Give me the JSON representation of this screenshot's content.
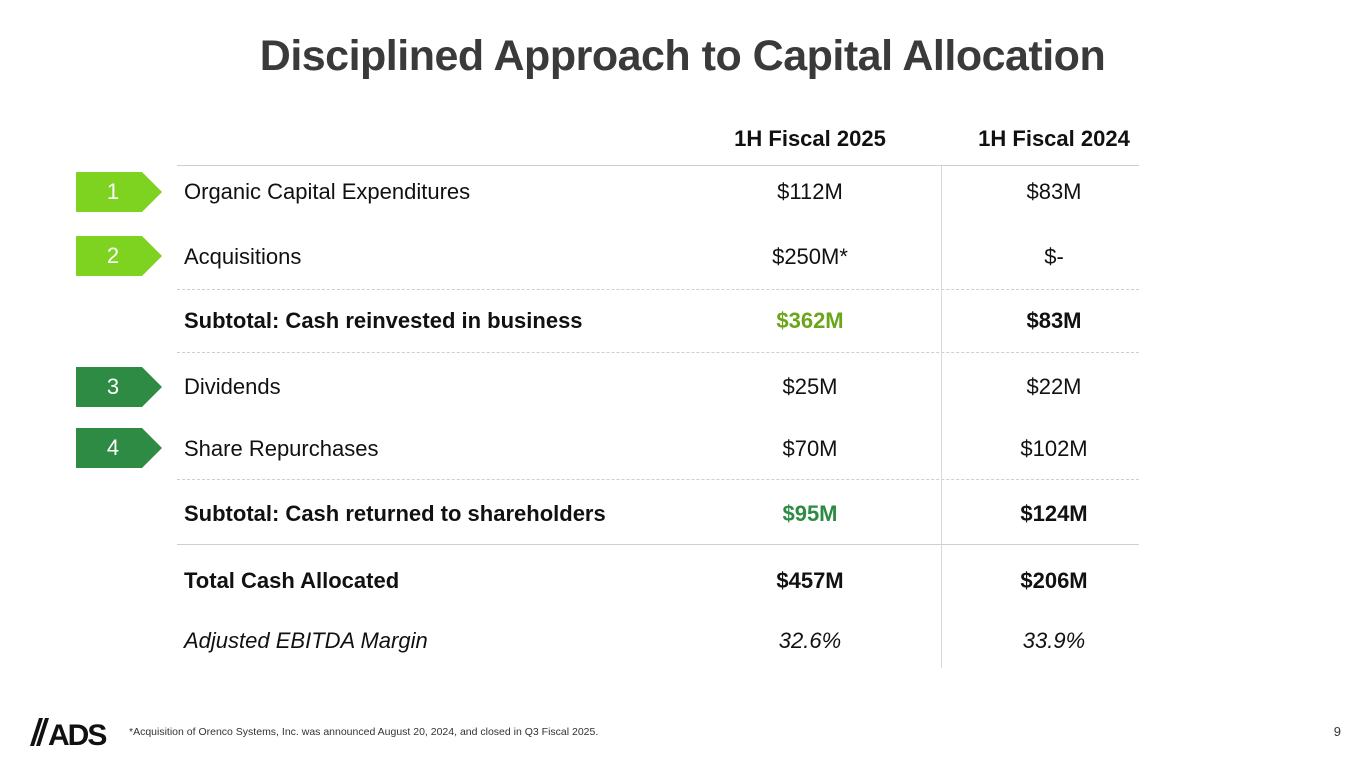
{
  "title": "Disciplined Approach to Capital Allocation",
  "columns": [
    "1H Fiscal 2025",
    "1H Fiscal 2024"
  ],
  "colors": {
    "badge_light_green": "#7ed321",
    "badge_dark_green": "#2e8b43",
    "value_light_green": "#6aa51a",
    "value_dark_green": "#2e8b43"
  },
  "badges": [
    {
      "number": "1",
      "color": "#7ed321"
    },
    {
      "number": "2",
      "color": "#7ed321"
    },
    {
      "number": "3",
      "color": "#2e8b43"
    },
    {
      "number": "4",
      "color": "#2e8b43"
    }
  ],
  "rows": [
    {
      "label": "Organic Capital Expenditures",
      "fy2025": "$112M",
      "fy2024": "$83M"
    },
    {
      "label": "Acquisitions",
      "fy2025": "$250M*",
      "fy2024": "$-"
    },
    {
      "label": "Subtotal: Cash reinvested in business",
      "fy2025": "$362M",
      "fy2024": "$83M"
    },
    {
      "label": "Dividends",
      "fy2025": "$25M",
      "fy2024": "$22M"
    },
    {
      "label": "Share Repurchases",
      "fy2025": "$70M",
      "fy2024": "$102M"
    },
    {
      "label": "Subtotal: Cash returned to shareholders",
      "fy2025": "$95M",
      "fy2024": "$124M"
    },
    {
      "label": "Total Cash Allocated",
      "fy2025": "$457M",
      "fy2024": "$206M"
    },
    {
      "label": "Adjusted EBITDA Margin",
      "fy2025": "32.6%",
      "fy2024": "33.9%"
    }
  ],
  "logo_text": "ADS",
  "footnote": "*Acquisition of Orenco Systems, Inc. was announced August 20, 2024, and closed in Q3 Fiscal 2025.",
  "page_number": "9"
}
